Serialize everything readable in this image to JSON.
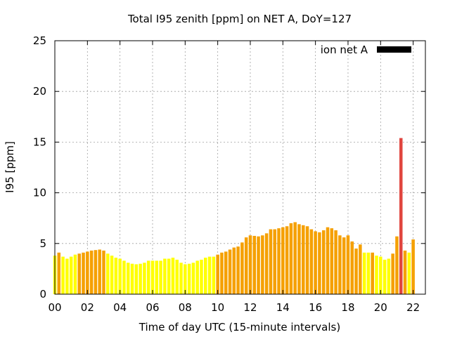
{
  "chart_data": {
    "type": "bar",
    "title": "Total I95 zenith [ppm] on NET A, DoY=127",
    "xlabel": "Time of day UTC (15-minute intervals)",
    "ylabel": "I95 [ppm]",
    "xlim": [
      0,
      22.75
    ],
    "ylim": [
      0,
      25
    ],
    "grid": true,
    "legend_position": "top-right",
    "legend": {
      "label": "ion net A",
      "color": "#000000"
    },
    "x_ticks": [
      {
        "value": 0,
        "label": "00"
      },
      {
        "value": 2,
        "label": "02"
      },
      {
        "value": 4,
        "label": "04"
      },
      {
        "value": 6,
        "label": "06"
      },
      {
        "value": 8,
        "label": "08"
      },
      {
        "value": 10,
        "label": "10"
      },
      {
        "value": 12,
        "label": "12"
      },
      {
        "value": 14,
        "label": "14"
      },
      {
        "value": 16,
        "label": "16"
      },
      {
        "value": 18,
        "label": "18"
      },
      {
        "value": 20,
        "label": "20"
      },
      {
        "value": 22,
        "label": "22"
      }
    ],
    "y_ticks": [
      {
        "value": 0,
        "label": "0"
      },
      {
        "value": 5,
        "label": "5"
      },
      {
        "value": 10,
        "label": "10"
      },
      {
        "value": 15,
        "label": "15"
      },
      {
        "value": 20,
        "label": "20"
      },
      {
        "value": 25,
        "label": "25"
      }
    ],
    "colors": {
      "yellow": "#ffff00",
      "orange": "#f5a000",
      "red": "#e0453f"
    },
    "bars": [
      {
        "x": 0.0,
        "value": 3.8,
        "color": "yellow"
      },
      {
        "x": 0.25,
        "value": 4.1,
        "color": "orange"
      },
      {
        "x": 0.5,
        "value": 3.7,
        "color": "yellow"
      },
      {
        "x": 0.75,
        "value": 3.5,
        "color": "yellow"
      },
      {
        "x": 1.0,
        "value": 3.7,
        "color": "yellow"
      },
      {
        "x": 1.25,
        "value": 3.9,
        "color": "yellow"
      },
      {
        "x": 1.5,
        "value": 4.0,
        "color": "orange"
      },
      {
        "x": 1.75,
        "value": 4.1,
        "color": "orange"
      },
      {
        "x": 2.0,
        "value": 4.2,
        "color": "orange"
      },
      {
        "x": 2.25,
        "value": 4.3,
        "color": "orange"
      },
      {
        "x": 2.5,
        "value": 4.35,
        "color": "orange"
      },
      {
        "x": 2.75,
        "value": 4.4,
        "color": "orange"
      },
      {
        "x": 3.0,
        "value": 4.3,
        "color": "orange"
      },
      {
        "x": 3.25,
        "value": 4.0,
        "color": "yellow"
      },
      {
        "x": 3.5,
        "value": 3.8,
        "color": "yellow"
      },
      {
        "x": 3.75,
        "value": 3.6,
        "color": "yellow"
      },
      {
        "x": 4.0,
        "value": 3.5,
        "color": "yellow"
      },
      {
        "x": 4.25,
        "value": 3.3,
        "color": "yellow"
      },
      {
        "x": 4.5,
        "value": 3.1,
        "color": "yellow"
      },
      {
        "x": 4.75,
        "value": 3.0,
        "color": "yellow"
      },
      {
        "x": 5.0,
        "value": 2.95,
        "color": "yellow"
      },
      {
        "x": 5.25,
        "value": 3.0,
        "color": "yellow"
      },
      {
        "x": 5.5,
        "value": 3.1,
        "color": "yellow"
      },
      {
        "x": 5.75,
        "value": 3.3,
        "color": "yellow"
      },
      {
        "x": 6.0,
        "value": 3.3,
        "color": "yellow"
      },
      {
        "x": 6.25,
        "value": 3.3,
        "color": "yellow"
      },
      {
        "x": 6.5,
        "value": 3.3,
        "color": "yellow"
      },
      {
        "x": 6.75,
        "value": 3.5,
        "color": "yellow"
      },
      {
        "x": 7.0,
        "value": 3.5,
        "color": "yellow"
      },
      {
        "x": 7.25,
        "value": 3.6,
        "color": "yellow"
      },
      {
        "x": 7.5,
        "value": 3.4,
        "color": "yellow"
      },
      {
        "x": 7.75,
        "value": 3.1,
        "color": "yellow"
      },
      {
        "x": 8.0,
        "value": 2.95,
        "color": "yellow"
      },
      {
        "x": 8.25,
        "value": 3.0,
        "color": "yellow"
      },
      {
        "x": 8.5,
        "value": 3.1,
        "color": "yellow"
      },
      {
        "x": 8.75,
        "value": 3.3,
        "color": "yellow"
      },
      {
        "x": 9.0,
        "value": 3.4,
        "color": "yellow"
      },
      {
        "x": 9.25,
        "value": 3.6,
        "color": "yellow"
      },
      {
        "x": 9.5,
        "value": 3.7,
        "color": "yellow"
      },
      {
        "x": 9.75,
        "value": 3.7,
        "color": "yellow"
      },
      {
        "x": 10.0,
        "value": 3.9,
        "color": "orange"
      },
      {
        "x": 10.25,
        "value": 4.1,
        "color": "orange"
      },
      {
        "x": 10.5,
        "value": 4.2,
        "color": "orange"
      },
      {
        "x": 10.75,
        "value": 4.4,
        "color": "orange"
      },
      {
        "x": 11.0,
        "value": 4.6,
        "color": "orange"
      },
      {
        "x": 11.25,
        "value": 4.7,
        "color": "orange"
      },
      {
        "x": 11.5,
        "value": 5.1,
        "color": "orange"
      },
      {
        "x": 11.75,
        "value": 5.6,
        "color": "orange"
      },
      {
        "x": 12.0,
        "value": 5.8,
        "color": "orange"
      },
      {
        "x": 12.25,
        "value": 5.75,
        "color": "orange"
      },
      {
        "x": 12.5,
        "value": 5.7,
        "color": "orange"
      },
      {
        "x": 12.75,
        "value": 5.8,
        "color": "orange"
      },
      {
        "x": 13.0,
        "value": 6.0,
        "color": "orange"
      },
      {
        "x": 13.25,
        "value": 6.4,
        "color": "orange"
      },
      {
        "x": 13.5,
        "value": 6.4,
        "color": "orange"
      },
      {
        "x": 13.75,
        "value": 6.5,
        "color": "orange"
      },
      {
        "x": 14.0,
        "value": 6.6,
        "color": "orange"
      },
      {
        "x": 14.25,
        "value": 6.7,
        "color": "orange"
      },
      {
        "x": 14.5,
        "value": 7.0,
        "color": "orange"
      },
      {
        "x": 14.75,
        "value": 7.1,
        "color": "orange"
      },
      {
        "x": 15.0,
        "value": 6.9,
        "color": "orange"
      },
      {
        "x": 15.25,
        "value": 6.8,
        "color": "orange"
      },
      {
        "x": 15.5,
        "value": 6.7,
        "color": "orange"
      },
      {
        "x": 15.75,
        "value": 6.4,
        "color": "orange"
      },
      {
        "x": 16.0,
        "value": 6.2,
        "color": "orange"
      },
      {
        "x": 16.25,
        "value": 6.1,
        "color": "orange"
      },
      {
        "x": 16.5,
        "value": 6.3,
        "color": "orange"
      },
      {
        "x": 16.75,
        "value": 6.6,
        "color": "orange"
      },
      {
        "x": 17.0,
        "value": 6.5,
        "color": "orange"
      },
      {
        "x": 17.25,
        "value": 6.3,
        "color": "orange"
      },
      {
        "x": 17.5,
        "value": 5.8,
        "color": "orange"
      },
      {
        "x": 17.75,
        "value": 5.6,
        "color": "orange"
      },
      {
        "x": 18.0,
        "value": 5.8,
        "color": "orange"
      },
      {
        "x": 18.25,
        "value": 5.2,
        "color": "orange"
      },
      {
        "x": 18.5,
        "value": 4.5,
        "color": "orange"
      },
      {
        "x": 18.75,
        "value": 4.9,
        "color": "orange"
      },
      {
        "x": 19.0,
        "value": 4.1,
        "color": "yellow"
      },
      {
        "x": 19.25,
        "value": 4.1,
        "color": "yellow"
      },
      {
        "x": 19.5,
        "value": 4.1,
        "color": "orange"
      },
      {
        "x": 19.75,
        "value": 3.8,
        "color": "yellow"
      },
      {
        "x": 20.0,
        "value": 3.7,
        "color": "yellow"
      },
      {
        "x": 20.25,
        "value": 3.4,
        "color": "yellow"
      },
      {
        "x": 20.5,
        "value": 3.5,
        "color": "yellow"
      },
      {
        "x": 20.75,
        "value": 4.0,
        "color": "orange"
      },
      {
        "x": 21.0,
        "value": 5.7,
        "color": "orange"
      },
      {
        "x": 21.25,
        "value": 15.4,
        "color": "red"
      },
      {
        "x": 21.5,
        "value": 4.3,
        "color": "orange"
      },
      {
        "x": 21.75,
        "value": 4.1,
        "color": "yellow"
      },
      {
        "x": 22.0,
        "value": 5.4,
        "color": "orange"
      }
    ]
  }
}
